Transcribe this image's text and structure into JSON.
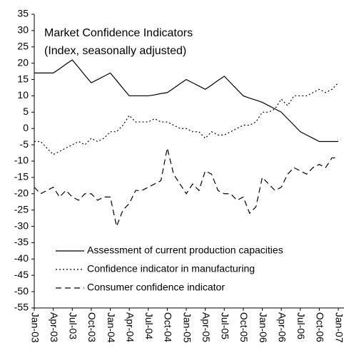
{
  "chart_data": {
    "type": "line",
    "title": "Market Confidence Indicators",
    "subtitle": "(Index, seasonally adjusted)",
    "categories": [
      "Jan-03",
      null,
      null,
      "Apr-03",
      null,
      null,
      "Jul-03",
      null,
      null,
      "Oct-03",
      null,
      null,
      "Jan-04",
      null,
      null,
      "Apr-04",
      null,
      null,
      "Jul-04",
      null,
      null,
      "Oct-04",
      null,
      null,
      "Jan-05",
      null,
      null,
      "Apr-05",
      null,
      null,
      "Jul-05",
      null,
      null,
      "Oct-05",
      null,
      null,
      "Jan-06",
      null,
      null,
      "Apr-06",
      null,
      null,
      "Jul-06",
      null,
      null,
      "Oct-06",
      null,
      null,
      "Jan-07"
    ],
    "series": [
      {
        "name": "Assessment of current production capacities",
        "color": "#000000",
        "dash": "solid",
        "values": [
          17,
          17,
          17,
          17,
          18.3,
          19.7,
          21,
          18.7,
          16.3,
          14,
          15,
          16,
          17,
          14.7,
          12.3,
          10,
          10,
          10,
          10,
          10.3,
          10.7,
          11,
          12.3,
          13.7,
          15,
          14,
          13,
          12,
          13.3,
          14.7,
          16,
          14,
          12,
          10,
          9.3,
          8.7,
          8,
          7,
          6,
          5,
          3,
          1,
          -1,
          -2,
          -3,
          -4,
          -4,
          -4,
          -4
        ]
      },
      {
        "name": "Confidence indicator in manufacturing",
        "color": "#000000",
        "dash": "dotted",
        "values": [
          -4,
          -4,
          -6,
          -8,
          -7,
          -6,
          -5,
          -4,
          -5,
          -3,
          -4,
          -3,
          -1,
          -1,
          1,
          4,
          2,
          2,
          2,
          3,
          2,
          2,
          1,
          0,
          0,
          -1,
          -1,
          -3,
          -1,
          -2,
          -2,
          -1,
          0,
          1,
          1,
          2,
          5,
          5,
          6,
          9,
          7,
          10,
          10,
          10,
          11,
          12,
          11,
          12,
          14
        ]
      },
      {
        "name": "Consumer confidence indicator",
        "color": "#000000",
        "dash": "dashed",
        "values": [
          -18,
          -20,
          -19,
          -18,
          -21,
          -19,
          -21,
          -22,
          -20,
          -20,
          -22,
          -21,
          -21,
          -30,
          -25,
          -23,
          -19,
          -19,
          -18,
          -17,
          -16,
          -6,
          -14,
          -17,
          -20,
          -17,
          -19,
          -13,
          -14,
          -19,
          -20,
          -20,
          -22,
          -21,
          -26,
          -24,
          -15,
          -17,
          -19,
          -18,
          -14,
          -12,
          -13,
          -14,
          -12,
          -11,
          -12,
          -9,
          -9
        ]
      }
    ],
    "ylim": [
      -55,
      35
    ],
    "yticks": [
      -55,
      -50,
      -45,
      -40,
      -35,
      -30,
      -25,
      -20,
      -15,
      -10,
      -5,
      0,
      5,
      10,
      15,
      20,
      25,
      30,
      35
    ],
    "grid": false,
    "legend": "lower left"
  }
}
